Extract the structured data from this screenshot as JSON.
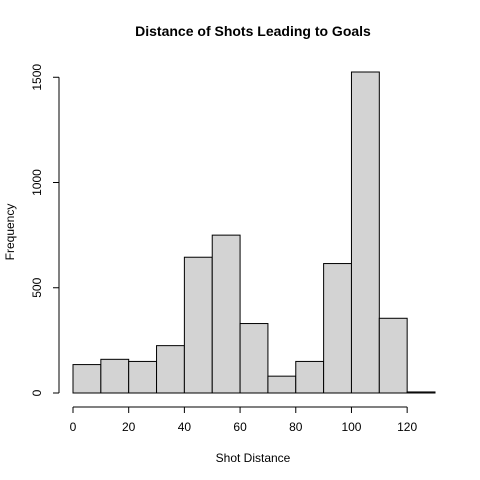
{
  "chart_data": {
    "type": "bar",
    "title": "Distance of Shots Leading to Goals",
    "xlabel": "Shot Distance",
    "ylabel": "Frequency",
    "bin_edges": [
      0,
      10,
      20,
      30,
      40,
      50,
      60,
      70,
      80,
      90,
      100,
      110,
      120,
      130
    ],
    "values": [
      135,
      160,
      150,
      225,
      645,
      750,
      330,
      80,
      150,
      615,
      1525,
      355,
      5
    ],
    "xlim": [
      0,
      130
    ],
    "ylim": [
      0,
      1525
    ],
    "x_ticks": [
      0,
      20,
      40,
      60,
      80,
      100,
      120
    ],
    "x_tick_labels": [
      "0",
      "20",
      "40",
      "60",
      "80",
      "100",
      "120"
    ],
    "y_ticks": [
      0,
      500,
      1000,
      1500
    ],
    "y_tick_labels": [
      "0",
      "500",
      "1000",
      "1500"
    ],
    "grid": false,
    "legend": "none",
    "colors": {
      "bar_fill": "#d3d3d3",
      "bar_stroke": "#000000",
      "axis": "#000000",
      "background": "#ffffff"
    }
  }
}
